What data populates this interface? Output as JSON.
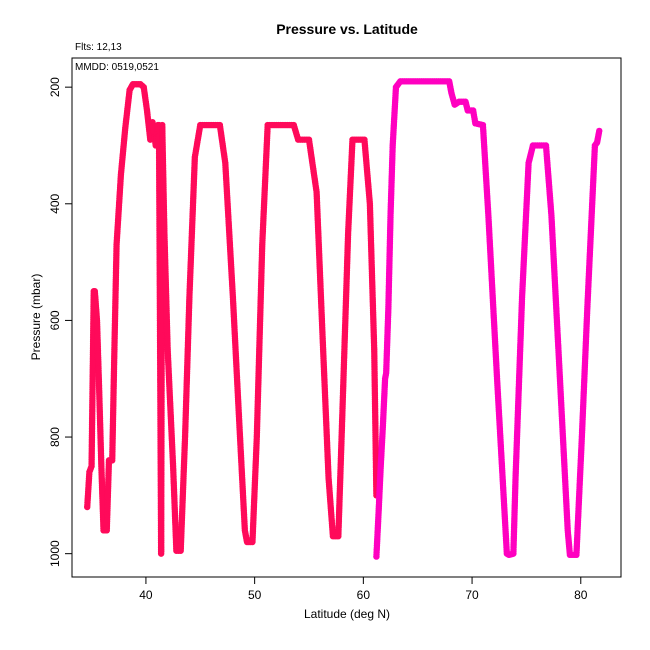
{
  "chart_data": {
    "type": "scatter",
    "title": "Pressure vs. Latitude",
    "annotation_flts": "Flts: 12,13",
    "annotation_mmdd": "MMDD: 0519,0521",
    "xlabel": "Latitude (deg N)",
    "ylabel": "Pressure (mbar)",
    "xlim": [
      33.2,
      83.7
    ],
    "ylim": [
      1040,
      150
    ],
    "y_reversed": true,
    "grid": false,
    "x_ticks": [
      40,
      50,
      60,
      70,
      80
    ],
    "y_ticks": [
      200,
      400,
      600,
      800,
      1000
    ],
    "x_tick_labels": [
      "40",
      "50",
      "60",
      "70",
      "80"
    ],
    "y_tick_labels": [
      "200",
      "400",
      "600",
      "800",
      "1000"
    ],
    "series": [
      {
        "color": "#ff0a5a",
        "points": [
          [
            34.6,
            920
          ],
          [
            34.8,
            860
          ],
          [
            35.0,
            850
          ],
          [
            35.2,
            550
          ],
          [
            35.3,
            550
          ],
          [
            35.5,
            600
          ],
          [
            35.7,
            720
          ],
          [
            35.9,
            850
          ],
          [
            36.1,
            960
          ],
          [
            36.4,
            960
          ],
          [
            36.6,
            840
          ],
          [
            36.9,
            840
          ],
          [
            37.1,
            650
          ],
          [
            37.3,
            470
          ],
          [
            37.7,
            350
          ],
          [
            38.1,
            270
          ],
          [
            38.5,
            205
          ],
          [
            38.8,
            195
          ],
          [
            39.5,
            195
          ],
          [
            39.8,
            200
          ],
          [
            40.1,
            240
          ],
          [
            40.4,
            290
          ],
          [
            40.6,
            260
          ],
          [
            40.9,
            300
          ],
          [
            41.1,
            265
          ],
          [
            41.2,
            265
          ],
          [
            41.4,
            1000
          ],
          [
            41.5,
            265
          ],
          [
            41.7,
            450
          ],
          [
            42.0,
            650
          ],
          [
            42.5,
            850
          ],
          [
            42.8,
            995
          ],
          [
            43.2,
            995
          ],
          [
            43.6,
            800
          ],
          [
            44.0,
            560
          ],
          [
            44.5,
            320
          ],
          [
            45.0,
            265
          ],
          [
            46.8,
            265
          ],
          [
            47.3,
            330
          ],
          [
            48.0,
            560
          ],
          [
            48.6,
            780
          ],
          [
            49.1,
            960
          ],
          [
            49.3,
            980
          ],
          [
            49.8,
            980
          ],
          [
            50.2,
            800
          ],
          [
            50.7,
            470
          ],
          [
            51.2,
            265
          ],
          [
            53.6,
            265
          ],
          [
            54.0,
            290
          ],
          [
            55.0,
            290
          ],
          [
            55.7,
            380
          ],
          [
            56.3,
            650
          ],
          [
            56.8,
            870
          ],
          [
            57.2,
            970
          ],
          [
            57.7,
            970
          ],
          [
            58.0,
            800
          ],
          [
            58.6,
            450
          ],
          [
            59.0,
            290
          ],
          [
            60.1,
            290
          ],
          [
            60.6,
            400
          ],
          [
            61.0,
            650
          ],
          [
            61.2,
            900
          ]
        ]
      },
      {
        "color": "#ff00c0",
        "points": [
          [
            61.2,
            1005
          ],
          [
            61.4,
            930
          ],
          [
            61.6,
            850
          ],
          [
            61.8,
            780
          ],
          [
            62.0,
            700
          ],
          [
            62.1,
            690
          ],
          [
            62.3,
            580
          ],
          [
            62.5,
            420
          ],
          [
            62.7,
            300
          ],
          [
            63.0,
            200
          ],
          [
            63.4,
            190
          ],
          [
            67.9,
            190
          ],
          [
            68.1,
            210
          ],
          [
            68.4,
            230
          ],
          [
            68.8,
            225
          ],
          [
            69.4,
            225
          ],
          [
            69.6,
            240
          ],
          [
            70.1,
            240
          ],
          [
            70.3,
            262
          ],
          [
            71.0,
            265
          ],
          [
            71.5,
            420
          ],
          [
            72.3,
            700
          ],
          [
            73.2,
            1000
          ],
          [
            73.4,
            1002
          ],
          [
            73.8,
            1000
          ],
          [
            74.0,
            870
          ],
          [
            74.6,
            560
          ],
          [
            75.2,
            330
          ],
          [
            75.6,
            300
          ],
          [
            76.8,
            300
          ],
          [
            77.3,
            420
          ],
          [
            78.0,
            670
          ],
          [
            78.8,
            960
          ],
          [
            79.0,
            1002
          ],
          [
            79.6,
            1002
          ],
          [
            80.1,
            800
          ],
          [
            80.6,
            580
          ],
          [
            81.0,
            420
          ],
          [
            81.3,
            300
          ],
          [
            81.5,
            295
          ],
          [
            81.7,
            275
          ]
        ]
      }
    ]
  }
}
